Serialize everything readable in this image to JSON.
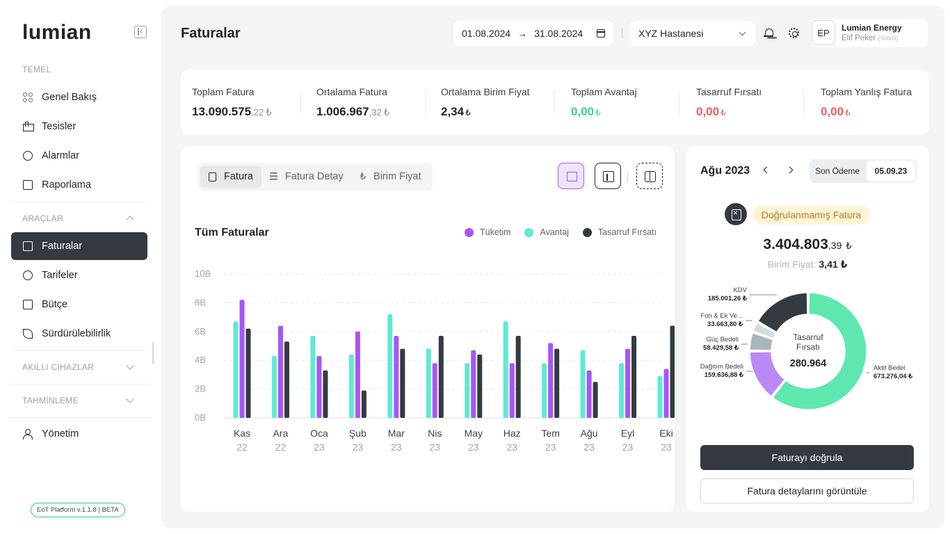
{
  "sidebar": {
    "logo": "lumian",
    "sections": {
      "temel": "TEMEL",
      "araclar": "ARAÇLAR",
      "akilli": "AKILLI CİHAZLAR",
      "tahminleme": "TAHMİNLEME"
    },
    "items": {
      "genel": "Genel Bakış",
      "tesisler": "Tesisler",
      "alarmlar": "Alarmlar",
      "raporlama": "Raporlama",
      "faturalar": "Faturalar",
      "tarifeler": "Tarifeler",
      "butce": "Bütçe",
      "surdurulebilirlik": "Sürdürülebilirlik",
      "yonetim": "Yönetim"
    },
    "version": "EoT Platform v.1.1.8 | BETA"
  },
  "header": {
    "title": "Faturalar",
    "date_start": "01.08.2024",
    "date_arrow": "→",
    "date_end": "31.08.2024",
    "facility": "XYZ Hastanesi",
    "user": {
      "initials": "EP",
      "org": "Lumian Energy",
      "name": "Elif Peker",
      "role": "(Yetkili)"
    }
  },
  "kpis": {
    "total_invoice": {
      "label": "Toplam Fatura",
      "int": "13.090.575",
      "dec": ",22",
      "cur": "₺"
    },
    "avg_invoice": {
      "label": "Ortalama Fatura",
      "int": "1.006.967",
      "dec": ",32",
      "cur": "₺"
    },
    "avg_unit": {
      "label": "Ortalama Birim Fiyat",
      "int": "2,34",
      "cur": "₺"
    },
    "total_advantage": {
      "label": "Toplam Avantaj",
      "int": "0,00",
      "cur": "₺"
    },
    "saving_opportunity": {
      "label": "Tasarruf Fırsatı",
      "int": "0,00",
      "cur": "₺"
    },
    "wrong_invoices": {
      "label": "Toplam Yanlış Fatura",
      "int": "0,00",
      "cur": "₺"
    }
  },
  "chart_panel": {
    "tabs": [
      "Fatura",
      "Fatura Detay",
      "Birim Fiyat"
    ],
    "lira_glyph": "₺",
    "active_tab": 0
  },
  "colors": {
    "tuketim": "#a855f7",
    "avantaj": "#5eead4",
    "tasarruf": "#343a40",
    "aktif": "#5ee8b0",
    "dagitim": "#b98af7",
    "guc": "#aab4bd",
    "fon": "#d5dade",
    "kdv": "#343a40"
  },
  "chart_data": [
    {
      "type": "bar",
      "title": "Tüm Faturalar",
      "categories": [
        "Kas",
        "Ara",
        "Oca",
        "Şub",
        "Mar",
        "Nis",
        "May",
        "Haz",
        "Tem",
        "Ağu",
        "Eyl",
        "Eki"
      ],
      "category_years": [
        "22",
        "22",
        "23",
        "23",
        "23",
        "23",
        "23",
        "23",
        "23",
        "23",
        "23",
        "23"
      ],
      "y_ticks": [
        "0B",
        "2B",
        "4B",
        "6B",
        "8B",
        "10B"
      ],
      "ylim": [
        0,
        10
      ],
      "grid": true,
      "legend_position": "top-right",
      "series": [
        {
          "name": "Avantaj",
          "values": [
            6.7,
            4.3,
            5.7,
            4.4,
            7.2,
            4.8,
            3.8,
            6.7,
            3.8,
            4.7,
            3.8,
            2.9
          ]
        },
        {
          "name": "Tüketim",
          "values": [
            8.2,
            6.4,
            4.3,
            6.0,
            5.7,
            3.8,
            4.7,
            3.8,
            5.2,
            3.3,
            4.8,
            3.4
          ]
        },
        {
          "name": "Tasarruf Fırsatı",
          "values": [
            6.2,
            5.3,
            3.3,
            1.9,
            4.8,
            5.7,
            4.4,
            5.7,
            4.8,
            2.5,
            5.7,
            6.4
          ]
        }
      ]
    },
    {
      "type": "pie",
      "center_title": "Tasarruf Fırsatı",
      "center_value": "280.964",
      "slices": [
        {
          "label": "Aktif Bedel",
          "value_text": "673.276,04 ₺",
          "value": 673276.04
        },
        {
          "label": "Dağıtım Bedeli",
          "value_text": "159.636,88 ₺",
          "value": 159636.88
        },
        {
          "label": "Güç Bedeli",
          "value_text": "58.429,58 ₺",
          "value": 58429.58
        },
        {
          "label": "Fon & Ek Ve...",
          "value_text": "33.663,80 ₺",
          "value": 33663.8
        },
        {
          "label": "KDV",
          "value_text": "185.001,26 ₺",
          "value": 185001.26
        }
      ]
    }
  ],
  "invoice": {
    "month": "Ağu 2023",
    "due_label": "Son Ödeme",
    "due_date": "05.09.23",
    "status": "Doğrulanmamış Fatura",
    "amount_int": "3.404.803",
    "amount_dec": ",39",
    "amount_cur": "₺",
    "unit_label": "Birim Fiyat:",
    "unit_value": "3,41 ₺",
    "verify_button": "Faturayı doğrula",
    "details_button": "Fatura detaylarını görüntüle"
  }
}
